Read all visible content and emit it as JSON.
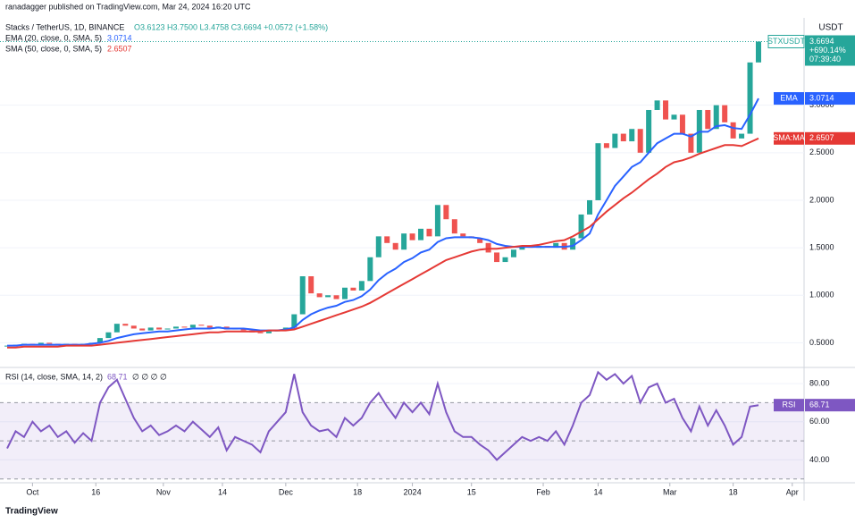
{
  "header": {
    "publisher": "ranadagger published on TradingView.com, Mar 24, 2024 16:20 UTC"
  },
  "footer": {
    "brand": "TradingView"
  },
  "chart_data": [
    {
      "type": "candlestick",
      "symbol": "Stacks / TetherUS, 1D, BINANCE",
      "ohlc": "O3.6123 H3.7500 L3.4758 C3.6694 +0.0572 (+1.58%)",
      "y_axis_label": "USDT",
      "up_color": "#26a69a",
      "down_color": "#ef5350",
      "price_tag": {
        "change": "+690.14%",
        "countdown": "07:39:40"
      },
      "xlim": [
        -0.85,
        94.4
      ],
      "xticks": [
        {
          "value": 3,
          "label": "Oct"
        },
        {
          "value": 10.5,
          "label": "16"
        },
        {
          "value": 18.5,
          "label": "Nov"
        },
        {
          "value": 25.5,
          "label": "14"
        },
        {
          "value": 33,
          "label": "Dec"
        },
        {
          "value": 41.5,
          "label": "18"
        },
        {
          "value": 48,
          "label": "2024"
        },
        {
          "value": 55,
          "label": "15"
        },
        {
          "value": 63.5,
          "label": "Feb"
        },
        {
          "value": 70,
          "label": "14"
        },
        {
          "value": 78.5,
          "label": "Mar"
        },
        {
          "value": 86,
          "label": "18"
        },
        {
          "value": 93,
          "label": "Apr"
        }
      ],
      "ylim": [
        0.25,
        3.9
      ],
      "yticks": [
        {
          "value": 0.5,
          "label": "0.5000"
        },
        {
          "value": 1,
          "label": "1.0000"
        },
        {
          "value": 1.5,
          "label": "1.5000"
        },
        {
          "value": 2,
          "label": "2.0000"
        },
        {
          "value": 2.5,
          "label": "2.5000"
        },
        {
          "value": 3,
          "label": "3.0000"
        }
      ],
      "series": [
        {
          "name": "STXUSDT",
          "color": "#26a69a",
          "values": [
            0.47,
            0.48,
            0.49,
            0.48,
            0.5,
            0.49,
            0.48,
            0.49,
            0.48,
            0.49,
            0.5,
            0.55,
            0.61,
            0.7,
            0.68,
            0.65,
            0.63,
            0.66,
            0.64,
            0.65,
            0.67,
            0.66,
            0.69,
            0.68,
            0.66,
            0.67,
            0.64,
            0.65,
            0.63,
            0.61,
            0.6,
            0.62,
            0.63,
            0.66,
            0.8,
            1.2,
            1.02,
            0.98,
            1.0,
            0.96,
            1.08,
            1.05,
            1.15,
            1.4,
            1.62,
            1.55,
            1.48,
            1.65,
            1.58,
            1.7,
            1.62,
            1.95,
            1.8,
            1.65,
            1.62,
            1.6,
            1.55,
            1.45,
            1.35,
            1.4,
            1.48,
            1.52,
            1.5,
            1.52,
            1.5,
            1.55,
            1.48,
            1.6,
            1.85,
            2.0,
            2.6,
            2.55,
            2.7,
            2.62,
            2.75,
            2.5,
            2.95,
            3.05,
            2.85,
            2.9,
            2.7,
            2.5,
            2.95,
            2.75,
            3.0,
            2.82,
            2.65,
            2.7,
            3.45,
            3.6694
          ]
        },
        {
          "name": "EMA",
          "legend": "EMA (20, close, 0, SMA, 5)",
          "color": "#2962ff",
          "values": [
            0.47,
            0.47,
            0.48,
            0.48,
            0.48,
            0.48,
            0.48,
            0.48,
            0.48,
            0.48,
            0.49,
            0.5,
            0.52,
            0.55,
            0.57,
            0.59,
            0.6,
            0.61,
            0.62,
            0.62,
            0.63,
            0.64,
            0.65,
            0.65,
            0.65,
            0.66,
            0.65,
            0.65,
            0.65,
            0.64,
            0.63,
            0.63,
            0.63,
            0.64,
            0.66,
            0.74,
            0.8,
            0.84,
            0.87,
            0.89,
            0.93,
            0.95,
            0.99,
            1.06,
            1.16,
            1.23,
            1.28,
            1.35,
            1.39,
            1.45,
            1.48,
            1.56,
            1.6,
            1.61,
            1.61,
            1.61,
            1.6,
            1.58,
            1.54,
            1.52,
            1.51,
            1.51,
            1.51,
            1.51,
            1.51,
            1.51,
            1.51,
            1.52,
            1.58,
            1.65,
            1.85,
            2.0,
            2.15,
            2.25,
            2.35,
            2.4,
            2.5,
            2.6,
            2.65,
            2.7,
            2.7,
            2.67,
            2.72,
            2.72,
            2.78,
            2.79,
            2.76,
            2.75,
            2.9,
            3.0714
          ]
        },
        {
          "name": "SMA:MA",
          "legend": "SMA (50, close, 0, SMA, 5)",
          "color": "#e53935",
          "values": [
            0.45,
            0.45,
            0.46,
            0.46,
            0.46,
            0.46,
            0.46,
            0.47,
            0.47,
            0.47,
            0.47,
            0.48,
            0.49,
            0.5,
            0.51,
            0.52,
            0.53,
            0.54,
            0.55,
            0.56,
            0.57,
            0.58,
            0.59,
            0.6,
            0.61,
            0.61,
            0.62,
            0.62,
            0.62,
            0.62,
            0.62,
            0.63,
            0.63,
            0.63,
            0.64,
            0.67,
            0.7,
            0.73,
            0.76,
            0.79,
            0.82,
            0.85,
            0.88,
            0.92,
            0.97,
            1.02,
            1.07,
            1.12,
            1.17,
            1.22,
            1.27,
            1.32,
            1.37,
            1.4,
            1.43,
            1.46,
            1.48,
            1.49,
            1.49,
            1.5,
            1.51,
            1.52,
            1.52,
            1.53,
            1.55,
            1.57,
            1.58,
            1.62,
            1.67,
            1.72,
            1.8,
            1.88,
            1.95,
            2.02,
            2.08,
            2.15,
            2.22,
            2.28,
            2.35,
            2.4,
            2.42,
            2.45,
            2.49,
            2.52,
            2.55,
            2.58,
            2.58,
            2.57,
            2.61,
            2.6507
          ]
        }
      ]
    },
    {
      "type": "line",
      "legend": "RSI (14, close, SMA, 14, 2)",
      "legend_extra": "∅ ∅ ∅ ∅",
      "ylim": [
        28,
        88
      ],
      "yticks": [
        {
          "value": 80,
          "label": "80.00"
        },
        {
          "value": 60,
          "label": "60.00"
        },
        {
          "value": 40,
          "label": "40.00"
        }
      ],
      "band": [
        30,
        70
      ],
      "midline": 50,
      "band_color": "#7e57c2",
      "series": [
        {
          "name": "RSI",
          "color": "#7e57c2",
          "values": [
            46,
            55,
            52,
            60,
            55,
            58,
            52,
            55,
            49,
            54,
            50,
            70,
            78,
            82,
            72,
            62,
            55,
            58,
            53,
            55,
            58,
            55,
            60,
            56,
            52,
            57,
            45,
            52,
            50,
            48,
            44,
            55,
            60,
            65,
            85,
            65,
            58,
            55,
            56,
            52,
            62,
            58,
            62,
            70,
            75,
            68,
            62,
            70,
            65,
            70,
            64,
            80,
            65,
            55,
            52,
            52,
            48,
            45,
            40,
            44,
            48,
            52,
            50,
            52,
            50,
            55,
            48,
            58,
            70,
            74,
            86,
            82,
            85,
            80,
            84,
            70,
            78,
            80,
            70,
            72,
            62,
            55,
            68,
            58,
            66,
            58,
            48,
            52,
            68,
            68.71
          ]
        }
      ]
    }
  ]
}
